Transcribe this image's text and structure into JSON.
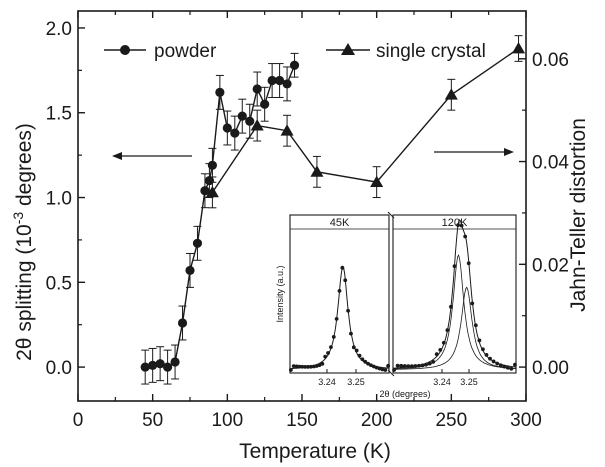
{
  "chart_data": {
    "type": "line",
    "xlabel": "Temperature (K)",
    "ylabel_left_prefix": "2θ splitting (10",
    "ylabel_left_exp": "-3",
    "ylabel_left_suffix": " degrees)",
    "ylabel_right": "Jahn-Teller distortion",
    "xlim": [
      0,
      300
    ],
    "ylim_left": [
      -0.2,
      2.1
    ],
    "ylim_right": [
      -0.0066,
      0.0693
    ],
    "x_ticks": [
      "0",
      "50",
      "100",
      "150",
      "200",
      "250",
      "300"
    ],
    "y_left_ticks": [
      "0.0",
      "0.5",
      "1.0",
      "1.5",
      "2.0"
    ],
    "y_right_ticks": [
      "0.00",
      "0.02",
      "0.04",
      "0.06"
    ],
    "legend_position": "top",
    "series": [
      {
        "name": "powder",
        "axis": "left",
        "marker": "circle",
        "x": [
          45,
          50,
          55,
          60,
          65,
          70,
          75,
          80,
          85,
          88,
          90,
          95,
          100,
          105,
          110,
          115,
          120,
          125,
          130,
          135,
          140,
          145
        ],
        "y": [
          0.0,
          0.01,
          0.02,
          0.0,
          0.03,
          0.26,
          0.57,
          0.73,
          1.04,
          1.1,
          1.19,
          1.62,
          1.41,
          1.38,
          1.48,
          1.45,
          1.64,
          1.55,
          1.69,
          1.69,
          1.67,
          1.78
        ],
        "err": [
          0.1,
          0.1,
          0.1,
          0.1,
          0.1,
          0.1,
          0.1,
          0.1,
          0.1,
          0.1,
          0.1,
          0.1,
          0.1,
          0.1,
          0.1,
          0.1,
          0.1,
          0.1,
          0.1,
          0.1,
          0.1,
          0.07
        ]
      },
      {
        "name": "single crystal",
        "axis": "right",
        "marker": "triangle",
        "x": [
          90,
          120,
          140,
          160,
          200,
          250,
          295
        ],
        "y": [
          0.034,
          0.047,
          0.046,
          0.038,
          0.036,
          0.053,
          0.062
        ],
        "err": [
          0.003,
          0.003,
          0.003,
          0.003,
          0.003,
          0.003,
          0.0025
        ]
      }
    ],
    "annotations": [
      "←",
      "→"
    ],
    "inset": {
      "ylabel": "Intensity (a.u.)",
      "xlabel": "2θ (degrees)",
      "panels": [
        {
          "label": "45K",
          "x_ticks": [
            "3.24",
            "3.25"
          ],
          "peaks": [
            {
              "center": 3.2485,
              "height": 0.9,
              "width": 0.0018
            }
          ]
        },
        {
          "label": "120K",
          "x_ticks": [
            "3.24",
            "3.25"
          ],
          "peaks": [
            {
              "center": 3.2455,
              "height": 1.0,
              "width": 0.0016
            },
            {
              "center": 3.2475,
              "height": 0.72,
              "width": 0.0016
            }
          ]
        }
      ]
    }
  },
  "colors": {
    "ink": "#1a1a1a",
    "background": "#ffffff"
  }
}
